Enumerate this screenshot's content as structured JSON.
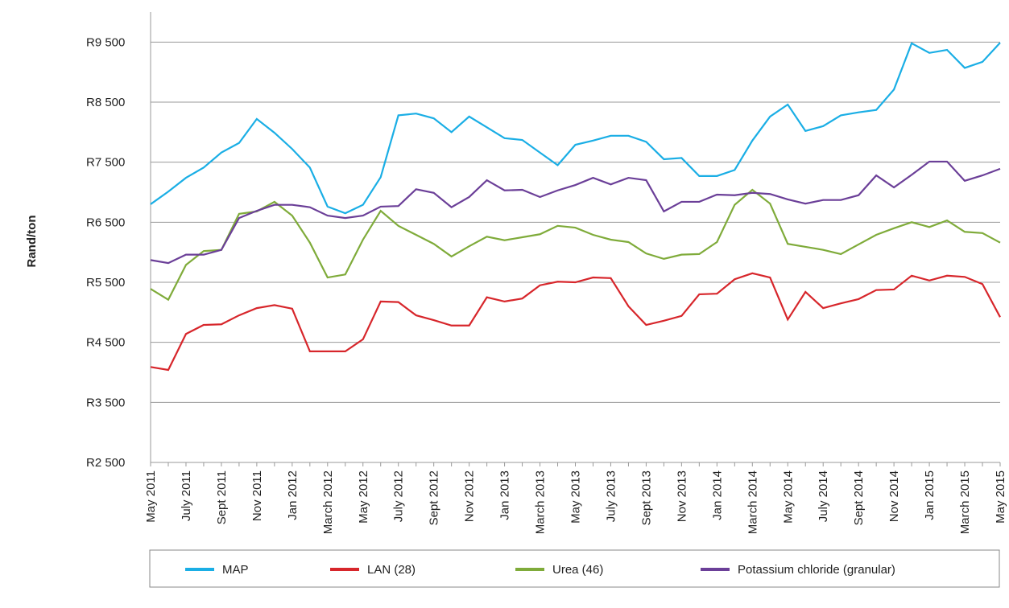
{
  "chart_data": {
    "type": "line",
    "y_label": "Rand/ton",
    "categories": [
      "May 2011",
      null,
      "July 2011",
      null,
      "Sept 2011",
      null,
      "Nov 2011",
      null,
      "Jan 2012",
      null,
      "March 2012",
      null,
      "May 2012",
      null,
      "July 2012",
      null,
      "Sept 2012",
      null,
      "Nov 2012",
      null,
      "Jan 2013",
      null,
      "March 2013",
      null,
      "May 2013",
      null,
      "July 2013",
      null,
      "Sept 2013",
      null,
      "Nov 2013",
      null,
      "Jan 2014",
      null,
      "March 2014",
      null,
      "May 2014",
      null,
      "July 2014",
      null,
      "Sept 2014",
      null,
      "Nov 2014",
      null,
      "Jan 2015",
      null,
      "March 2015",
      null,
      "May 2015"
    ],
    "series": [
      {
        "name": "MAP",
        "color": "#1aaee5",
        "values": [
          6800,
          7010,
          7240,
          7410,
          7660,
          7820,
          8220,
          7990,
          7720,
          7410,
          6760,
          6650,
          6790,
          7250,
          8280,
          8310,
          8230,
          8000,
          8260,
          8080,
          7900,
          7870,
          7660,
          7450,
          7790,
          7860,
          7940,
          7940,
          7840,
          7550,
          7570,
          7270,
          7270,
          7370,
          7860,
          8260,
          8460,
          8020,
          8100,
          8280,
          8330,
          8370,
          8710,
          9480,
          9320,
          9370,
          9070,
          9170,
          9490
        ]
      },
      {
        "name": "LAN (28)",
        "color": "#d7262b",
        "values": [
          4090,
          4040,
          4640,
          4790,
          4800,
          4950,
          5070,
          5120,
          5060,
          4350,
          4350,
          4350,
          4550,
          5180,
          5170,
          4950,
          4870,
          4780,
          4780,
          5250,
          5180,
          5230,
          5450,
          5510,
          5500,
          5580,
          5570,
          5100,
          4790,
          4860,
          4940,
          5300,
          5310,
          5550,
          5650,
          5580,
          4880,
          5340,
          5070,
          5150,
          5220,
          5370,
          5380,
          5610,
          5530,
          5610,
          5590,
          5470,
          4920
        ]
      },
      {
        "name": "Urea (46)",
        "color": "#7fab3a",
        "values": [
          5390,
          5210,
          5790,
          6020,
          6040,
          6640,
          6680,
          6840,
          6610,
          6160,
          5580,
          5630,
          6210,
          6690,
          6440,
          6290,
          6140,
          5930,
          6100,
          6260,
          6200,
          6250,
          6300,
          6440,
          6410,
          6290,
          6210,
          6170,
          5980,
          5890,
          5960,
          5970,
          6170,
          6790,
          7040,
          6810,
          6140,
          6090,
          6040,
          5970,
          6130,
          6290,
          6400,
          6500,
          6420,
          6530,
          6340,
          6320,
          6160
        ]
      },
      {
        "name": "Potassium chloride (granular)",
        "color": "#6b3f98",
        "values": [
          5870,
          5820,
          5960,
          5960,
          6040,
          6570,
          6690,
          6790,
          6790,
          6750,
          6610,
          6570,
          6610,
          6760,
          6770,
          7050,
          6990,
          6750,
          6920,
          7200,
          7030,
          7040,
          6920,
          7030,
          7120,
          7240,
          7130,
          7240,
          7200,
          6680,
          6840,
          6840,
          6960,
          6950,
          6990,
          6970,
          6880,
          6810,
          6870,
          6870,
          6950,
          7280,
          7080,
          7290,
          7510,
          7510,
          7190,
          7280,
          7390
        ]
      }
    ],
    "ylim": [
      2500,
      10000
    ],
    "yticks": [
      {
        "value": 2500,
        "label": "R2 500"
      },
      {
        "value": 3500,
        "label": "R3 500"
      },
      {
        "value": 4500,
        "label": "R4 500"
      },
      {
        "value": 5500,
        "label": "R5 500"
      },
      {
        "value": 6500,
        "label": "R6 500"
      },
      {
        "value": 7500,
        "label": "R7 500"
      },
      {
        "value": 8500,
        "label": "R8 500"
      },
      {
        "value": 9500,
        "label": "R9 500"
      }
    ],
    "grid": true
  }
}
